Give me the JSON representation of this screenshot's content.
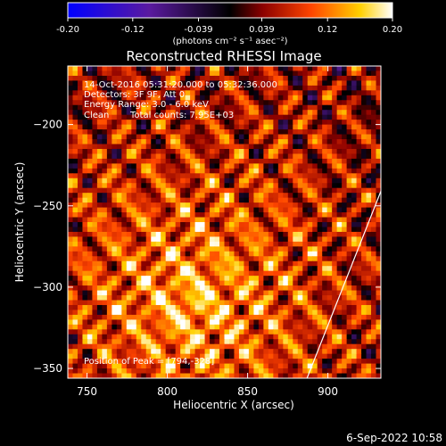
{
  "chart_data": {
    "type": "heatmap",
    "title": "Reconstructed RHESSI Image",
    "xlabel": "Heliocentric X (arcsec)",
    "ylabel": "Heliocentric Y (arcsec)",
    "xlim": [
      738,
      933
    ],
    "ylim": [
      -356,
      -164
    ],
    "x_ticks": [
      750,
      800,
      850,
      900
    ],
    "x_tick_labels": [
      "750",
      "800",
      "850",
      "900"
    ],
    "y_ticks": [
      -200,
      -250,
      -300,
      -350
    ],
    "y_tick_labels": [
      "−200",
      "−250",
      "−300",
      "−350"
    ],
    "colorbar": {
      "range": [
        -0.2,
        0.2
      ],
      "ticks": [
        -0.2,
        -0.12,
        -0.039,
        0.039,
        0.12,
        0.2
      ],
      "tick_labels": [
        "-0.20",
        "-0.12",
        "-0.039",
        "0.039",
        "0.12",
        "0.20"
      ],
      "units_label": "(photons cm⁻² s⁻¹ asec⁻²)",
      "colors": [
        "#0000ff",
        "#5a1aa0",
        "#000000",
        "#8b0000",
        "#ff4500",
        "#ffd000",
        "#ffffff"
      ]
    },
    "annotations": {
      "line1": "14-Oct-2016 05:31:20.000 to 05:32:36.000",
      "line2": "Detectors: 3F 9F, Att 0",
      "line3": "Energy Range: 3.0 - 6.0 keV",
      "line4_label": "Clean",
      "line4_counts": "Total counts: 7.95E+03",
      "peak": "Position of Peak = [794,-328]"
    },
    "peak_position": [
      794,
      -328
    ],
    "limb_line": [
      [
        887,
        -356
      ],
      [
        933,
        -241
      ]
    ]
  },
  "footer": {
    "timestamp": "6-Sep-2022 10:58"
  }
}
